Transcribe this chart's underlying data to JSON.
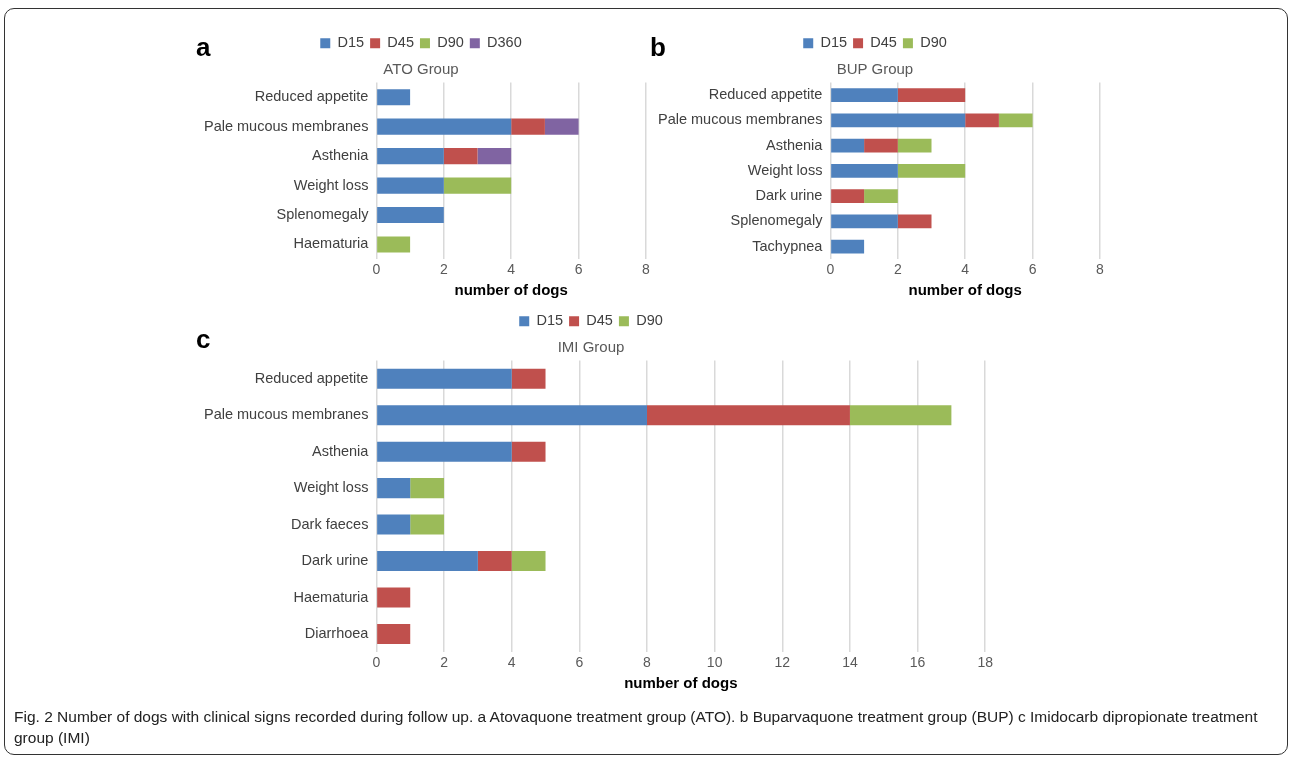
{
  "chart_data": [
    {
      "type": "bar",
      "orientation": "horizontal",
      "stacked": true,
      "title": "ATO Group",
      "xlabel": "number of dogs",
      "annotations": [
        "a"
      ],
      "legend": "top",
      "grid": "x",
      "xlim": [
        0,
        8
      ],
      "xticks": [
        0,
        2,
        4,
        6,
        8
      ],
      "categories": [
        "Reduced appetite",
        "Pale mucous membranes",
        "Asthenia",
        "Weight loss",
        "Splenomegaly",
        "Haematuria"
      ],
      "series": [
        {
          "name": "D15",
          "color": "#4f81bd",
          "values": [
            1,
            4,
            2,
            2,
            2,
            null
          ]
        },
        {
          "name": "D45",
          "color": "#c0504d",
          "values": [
            null,
            1,
            1,
            null,
            null,
            null
          ]
        },
        {
          "name": "D90",
          "color": "#9bbb59",
          "values": [
            null,
            null,
            null,
            2,
            null,
            1
          ]
        },
        {
          "name": "D360",
          "color": "#8064a2",
          "values": [
            null,
            1,
            1,
            null,
            null,
            null
          ]
        }
      ]
    },
    {
      "type": "bar",
      "orientation": "horizontal",
      "stacked": true,
      "title": "BUP Group",
      "xlabel": "number of dogs",
      "annotations": [
        "b"
      ],
      "legend": "top",
      "grid": "x",
      "xlim": [
        0,
        8
      ],
      "xticks": [
        0,
        2,
        4,
        6,
        8
      ],
      "categories": [
        "Reduced appetite",
        "Pale mucous membranes",
        "Asthenia",
        "Weight loss",
        "Dark urine",
        "Splenomegaly",
        "Tachypnea"
      ],
      "series": [
        {
          "name": "D15",
          "color": "#4f81bd",
          "values": [
            2,
            4,
            1,
            2,
            null,
            2,
            1
          ]
        },
        {
          "name": "D45",
          "color": "#c0504d",
          "values": [
            2,
            1,
            1,
            null,
            1,
            1,
            null
          ]
        },
        {
          "name": "D90",
          "color": "#9bbb59",
          "values": [
            null,
            1,
            1,
            2,
            1,
            null,
            null
          ]
        }
      ]
    },
    {
      "type": "bar",
      "orientation": "horizontal",
      "stacked": true,
      "title": "IMI Group",
      "xlabel": "number of dogs",
      "annotations": [
        "c",
        "Fig. 2 Number of dogs with clinical signs recorded during follow up. a Atovaquone treatment group (ATO). b Buparvaquone treatment group (BUP) c Imidocarb dipropionate treatment group (IMI)"
      ],
      "legend": "top",
      "grid": "x",
      "xlim": [
        0,
        18
      ],
      "xticks": [
        0,
        2,
        4,
        6,
        8,
        10,
        12,
        14,
        16,
        18
      ],
      "categories": [
        "Reduced appetite",
        "Pale mucous membranes",
        "Asthenia",
        "Weight loss",
        "Dark faeces",
        "Dark urine",
        "Haematuria",
        "Diarrhoea"
      ],
      "series": [
        {
          "name": "D15",
          "color": "#4f81bd",
          "values": [
            4,
            8,
            4,
            1,
            1,
            3,
            null,
            null
          ]
        },
        {
          "name": "D45",
          "color": "#c0504d",
          "values": [
            1,
            6,
            1,
            null,
            null,
            1,
            1,
            1
          ]
        },
        {
          "name": "D90",
          "color": "#9bbb59",
          "values": [
            null,
            3,
            null,
            1,
            1,
            1,
            null,
            null
          ]
        }
      ]
    }
  ]
}
